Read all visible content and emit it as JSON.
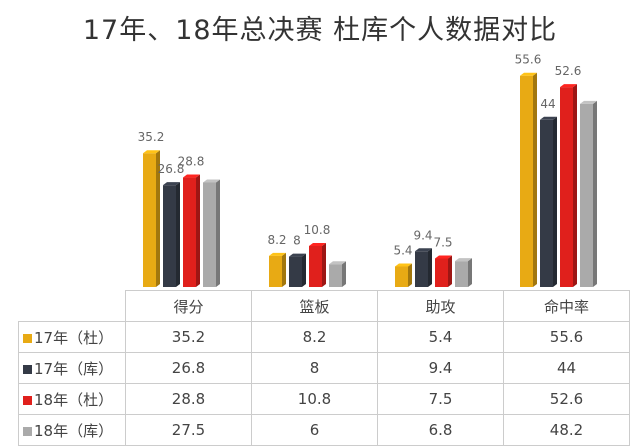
{
  "chart_data": {
    "type": "bar",
    "title": "17年、18年总决赛 杜库个人数据对比",
    "categories": [
      "得分",
      "篮板",
      "助攻",
      "命中率"
    ],
    "series": [
      {
        "name": "17年（杜）",
        "color": "#e8aa14",
        "values": [
          35.2,
          8.2,
          5.4,
          55.6
        ],
        "labels": [
          true,
          true,
          true,
          true
        ]
      },
      {
        "name": "17年（库）",
        "color": "#343a46",
        "values": [
          26.8,
          8,
          9.4,
          44
        ],
        "labels": [
          true,
          true,
          true,
          true
        ]
      },
      {
        "name": "18年（杜）",
        "color": "#e0201c",
        "values": [
          28.8,
          10.8,
          7.5,
          52.6
        ],
        "labels": [
          true,
          true,
          true,
          true
        ]
      },
      {
        "name": "18年（库）",
        "color": "#aaaaaa",
        "values": [
          27.5,
          6,
          6.8,
          48.2
        ],
        "labels": [
          false,
          false,
          false,
          false
        ]
      }
    ],
    "ylim": [
      0,
      60
    ]
  }
}
